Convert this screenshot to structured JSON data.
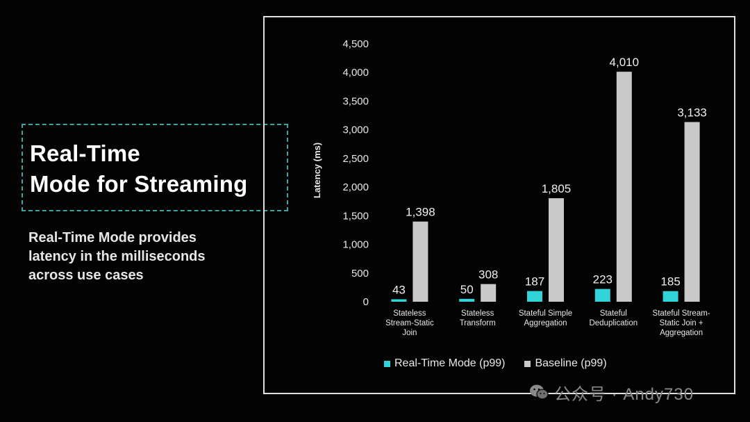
{
  "slide": {
    "title_lines": [
      "Real-Time",
      "Mode for Streaming"
    ],
    "subtitle_lines": [
      "Real-Time Mode provides",
      "latency in the milliseconds",
      "across use cases"
    ]
  },
  "watermark": {
    "text": "公众号 · Andy730",
    "icon": "wechat-icon"
  },
  "chart_data": {
    "type": "bar",
    "ylabel": "Latency (ms)",
    "xlabel": "",
    "ylim": [
      0,
      4500
    ],
    "yticks": [
      0,
      500,
      1000,
      1500,
      2000,
      2500,
      3000,
      3500,
      4000,
      4500
    ],
    "ytick_labels": [
      "0",
      "500",
      "1,000",
      "1,500",
      "2,000",
      "2,500",
      "3,000",
      "3,500",
      "4,000",
      "4,500"
    ],
    "grid": false,
    "legend_position": "bottom",
    "categories": [
      [
        "Stateless",
        "Stream-Static",
        "Join"
      ],
      [
        "Stateless",
        "Transform"
      ],
      [
        "Stateful Simple",
        "Aggregation"
      ],
      [
        "Stateful",
        "Deduplication"
      ],
      [
        "Stateful Stream-",
        "Static Join +",
        "Aggregation"
      ]
    ],
    "series": [
      {
        "name": "Real-Time Mode (p99)",
        "color": "#2fd3d8",
        "values": [
          43,
          50,
          187,
          223,
          185
        ],
        "labels": [
          "43",
          "50",
          "187",
          "223",
          "185"
        ]
      },
      {
        "name": "Baseline (p99)",
        "color": "#c9c9c9",
        "values": [
          1398,
          308,
          1805,
          4010,
          3133
        ],
        "labels": [
          "1,398",
          "308",
          "1,805",
          "4,010",
          "3,133"
        ]
      }
    ]
  }
}
